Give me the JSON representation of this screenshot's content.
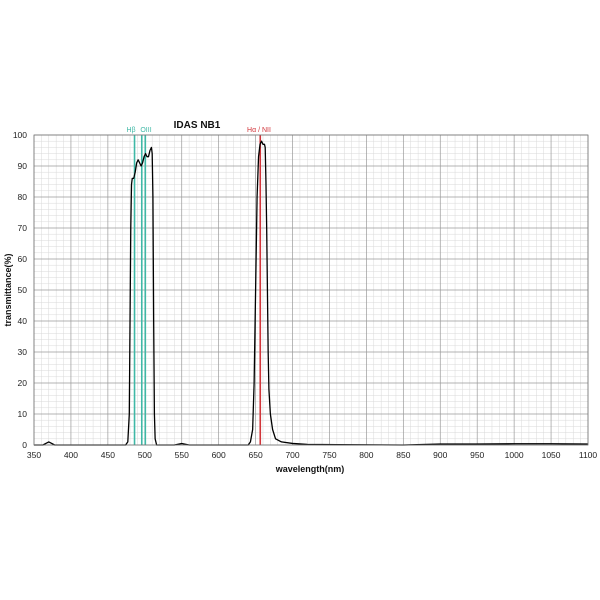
{
  "chart_data": {
    "type": "line",
    "title": "IDAS  NB1",
    "xlabel": "wavelength(nm)",
    "ylabel": "transmittance(%)",
    "xlim": [
      350,
      1100
    ],
    "ylim": [
      0,
      100
    ],
    "x_ticks": [
      "350",
      "400",
      "450",
      "500",
      "550",
      "600",
      "650",
      "700",
      "750",
      "800",
      "850",
      "900",
      "950",
      "1000",
      "1050",
      "1100"
    ],
    "y_ticks": [
      "0",
      "10",
      "20",
      "30",
      "40",
      "50",
      "60",
      "70",
      "80",
      "90",
      "100"
    ],
    "grid": true,
    "series": [
      {
        "color": "#000000",
        "points": [
          [
            350,
            0
          ],
          [
            362,
            0
          ],
          [
            366,
            0.5
          ],
          [
            370,
            1.0
          ],
          [
            374,
            0.5
          ],
          [
            378,
            0
          ],
          [
            450,
            0
          ],
          [
            474,
            0
          ],
          [
            477,
            1
          ],
          [
            479,
            10
          ],
          [
            480,
            40
          ],
          [
            481,
            70
          ],
          [
            482,
            84
          ],
          [
            483,
            86
          ],
          [
            485,
            86
          ],
          [
            487,
            88
          ],
          [
            489,
            91
          ],
          [
            491,
            92
          ],
          [
            493,
            91
          ],
          [
            495,
            90
          ],
          [
            497,
            91
          ],
          [
            499,
            93
          ],
          [
            501,
            94
          ],
          [
            503,
            93
          ],
          [
            505,
            93
          ],
          [
            507,
            95
          ],
          [
            509,
            96
          ],
          [
            510,
            94
          ],
          [
            511,
            80
          ],
          [
            512,
            40
          ],
          [
            513,
            10
          ],
          [
            514,
            2
          ],
          [
            516,
            0
          ],
          [
            540,
            0
          ],
          [
            550,
            0.5
          ],
          [
            560,
            0
          ],
          [
            640,
            0
          ],
          [
            643,
            1
          ],
          [
            646,
            5
          ],
          [
            648,
            20
          ],
          [
            650,
            50
          ],
          [
            652,
            80
          ],
          [
            654,
            93
          ],
          [
            656,
            97
          ],
          [
            658,
            98
          ],
          [
            660,
            97
          ],
          [
            662,
            97
          ],
          [
            663,
            96
          ],
          [
            664,
            85
          ],
          [
            665,
            70
          ],
          [
            666,
            50
          ],
          [
            667,
            30
          ],
          [
            668,
            18
          ],
          [
            670,
            10
          ],
          [
            673,
            5
          ],
          [
            677,
            2
          ],
          [
            685,
            1
          ],
          [
            700,
            0.5
          ],
          [
            720,
            0.2
          ],
          [
            760,
            0.1
          ],
          [
            850,
            0
          ],
          [
            900,
            0.3
          ],
          [
            950,
            0.3
          ],
          [
            1000,
            0.4
          ],
          [
            1050,
            0.4
          ],
          [
            1100,
            0.3
          ]
        ]
      }
    ],
    "reference_lines": [
      {
        "label": "Hβ",
        "x": 486.1,
        "color": "#3fb8a6"
      },
      {
        "label": "OIII",
        "x": 495.9,
        "color": "#3fb8a6"
      },
      {
        "label": "OIII",
        "x": 500.7,
        "color": "#3fb8a6"
      },
      {
        "label": "Hα / NII",
        "x": 656.3,
        "color": "#d1353a"
      }
    ],
    "annotations": [
      "Hβ",
      "OIII",
      "Hα / NII"
    ]
  }
}
